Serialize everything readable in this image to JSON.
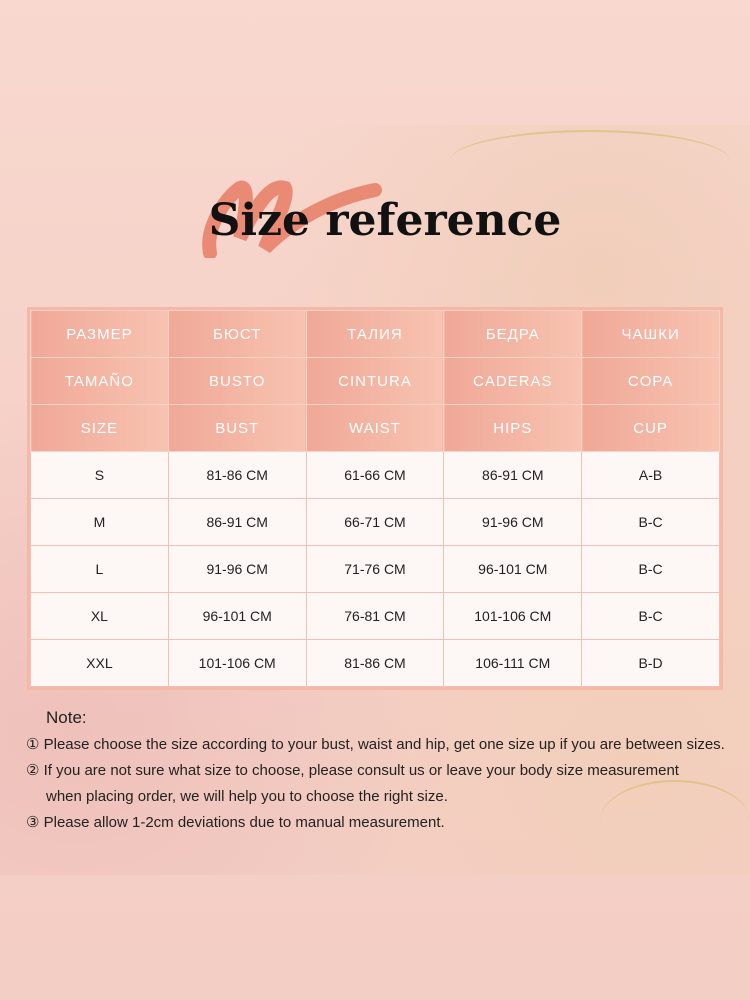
{
  "title": "Size reference",
  "table": {
    "header_rows": [
      [
        "РАЗМЕР",
        "БЮСТ",
        "ТАЛИЯ",
        "БЕДРА",
        "ЧАШКИ"
      ],
      [
        "TAMAÑO",
        "BUSTO",
        "CINTURA",
        "CADERAS",
        "COPA"
      ],
      [
        "SIZE",
        "BUST",
        "WAIST",
        "HIPS",
        "CUP"
      ]
    ],
    "rows": [
      [
        "S",
        "81-86 CM",
        "61-66 CM",
        "86-91 CM",
        "A-B"
      ],
      [
        "M",
        "86-91 CM",
        "66-71 CM",
        "91-96 CM",
        "B-C"
      ],
      [
        "L",
        "91-96 CM",
        "71-76 CM",
        "96-101 CM",
        "B-C"
      ],
      [
        "XL",
        "96-101 CM",
        "76-81 CM",
        "101-106 CM",
        "B-C"
      ],
      [
        "XXL",
        "101-106 CM",
        "81-86 CM",
        "106-111 CM",
        "B-D"
      ]
    ]
  },
  "notes": {
    "title": "Note:",
    "items": [
      "① Please choose the size according to your bust, waist and hip, get one size up if you are between sizes.",
      "② If you are not sure what size to choose, please consult us or leave your body size measurement",
      "when placing order, we will help you to choose the right size.",
      "③ Please allow 1-2cm deviations due to manual measurement."
    ]
  },
  "colors": {
    "header": "#f0a897",
    "brush": "#e8826a",
    "background": "#f8d8cf"
  }
}
